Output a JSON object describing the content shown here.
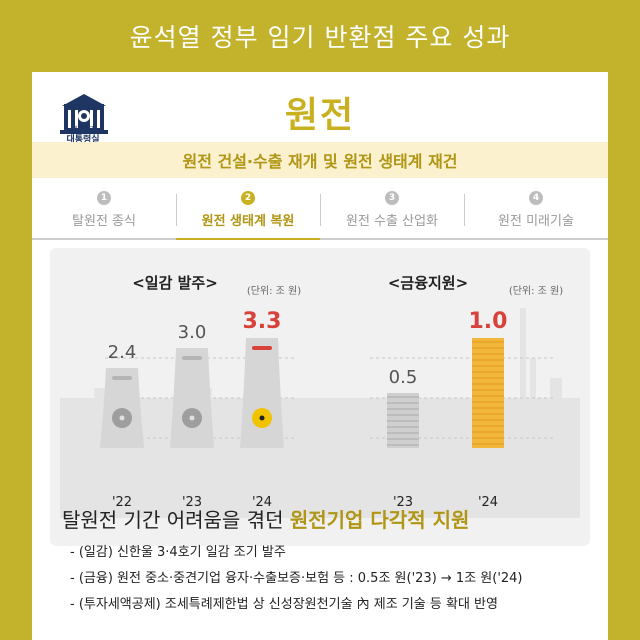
{
  "header": {
    "title": "윤석열 정부 임기 반환점 주요 성과"
  },
  "logo": {
    "line1": "대한민국",
    "line2": "대통령실"
  },
  "page": {
    "title": "원전",
    "subtitle": "원전 건설·수출 재개 및 원전 생태계 재건"
  },
  "steps": [
    {
      "num": "1",
      "label": "탈원전 종식",
      "active": false
    },
    {
      "num": "2",
      "label": "원전 생태계 복원",
      "active": true
    },
    {
      "num": "3",
      "label": "원전 수출 산업화",
      "active": false
    },
    {
      "num": "4",
      "label": "원전 미래기술",
      "active": false
    }
  ],
  "chart_data": [
    {
      "type": "bar",
      "title": "<일감 발주>",
      "unit": "(단위: 조 원)",
      "categories": [
        "'22",
        "'23",
        "'24"
      ],
      "values": [
        2.4,
        3.0,
        3.3
      ],
      "labels": [
        "2.4",
        "3.0",
        "3.3"
      ],
      "highlight_color": "#d9413b",
      "normal_color": "#555555"
    },
    {
      "type": "bar",
      "title": "<금융지원>",
      "unit": "(단위: 조 원)",
      "categories": [
        "'23",
        "'24"
      ],
      "values": [
        0.5,
        1.0
      ],
      "labels": [
        "0.5",
        "1.0"
      ],
      "highlight_color": "#d9413b",
      "normal_color": "#555555"
    }
  ],
  "caption": {
    "prefix": "탈원전 기간 어려움을 겪던 ",
    "highlight": "원전기업 다각적 지원"
  },
  "bullets": [
    "- (일감) 신한울 3·4호기 일감 조기 발주",
    "- (금융) 원전 중소·중견기업 융자·수출보증·보험 등 : 0.5조 원('23) → 1조 원('24)",
    "- (투자세액공제) 조세특례제한법 상 신성장원천기술 內 제조 기술 등 확대 반영"
  ],
  "colors": {
    "accent": "#c9b020",
    "background": "#c3b22b",
    "highlight": "#d9413b"
  }
}
